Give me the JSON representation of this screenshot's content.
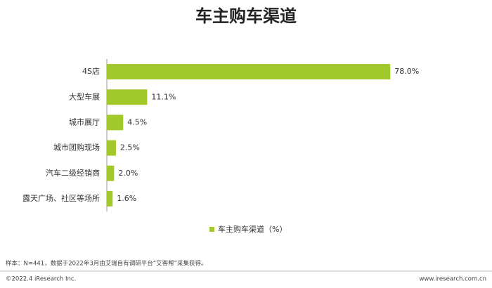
{
  "chart_data": {
    "type": "bar",
    "orientation": "horizontal",
    "title": "车主购车渠道",
    "categories": [
      "4S店",
      "大型车展",
      "城市展厅",
      "城市团购现场",
      "汽车二级经销商",
      "露天广场、社区等场所"
    ],
    "series": [
      {
        "name": "车主购车渠道（%）",
        "color": "#a2c92b",
        "values": [
          78.0,
          11.1,
          4.5,
          2.5,
          2.0,
          1.6
        ],
        "value_labels": [
          "78.0%",
          "11.1%",
          "4.5%",
          "2.5%",
          "2.0%",
          "1.6%"
        ]
      }
    ],
    "legend": "bottom"
  },
  "note": "样本：N=441，数据于2022年3月由艾瑞自有调研平台“艾客帮”采集获得。",
  "footer": {
    "left": "©2022.4 iResearch Inc.",
    "right": "www.iresearch.com.cn"
  }
}
